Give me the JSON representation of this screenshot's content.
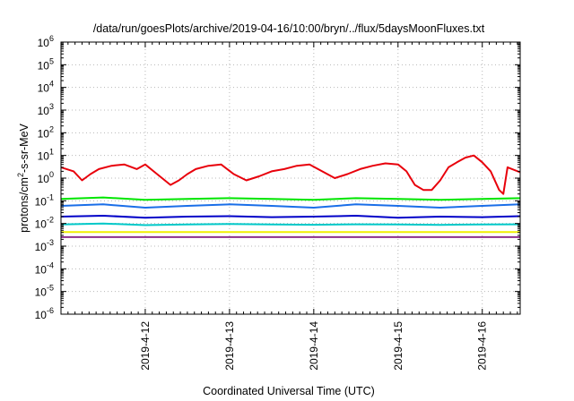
{
  "chart_data": {
    "type": "line",
    "title": "/data/run/goesPlots/archive/2019-04-16/10:00/bryn/../flux/5daysMoonFluxes.txt",
    "xlabel": "Coordinated Universal Time (UTC)",
    "ylabel": {
      "pre": "protons/cm",
      "sup": "2",
      "post": "-s-sr-MeV"
    },
    "yscale": "log",
    "ylim_exp": [
      -6,
      6
    ],
    "y_ticks": [
      {
        "base": "10",
        "exp": "-6"
      },
      {
        "base": "10",
        "exp": "-5"
      },
      {
        "base": "10",
        "exp": "-4"
      },
      {
        "base": "10",
        "exp": "-3"
      },
      {
        "base": "10",
        "exp": "-2"
      },
      {
        "base": "10",
        "exp": "-1"
      },
      {
        "base": "10",
        "exp": "0"
      },
      {
        "base": "10",
        "exp": "1"
      },
      {
        "base": "10",
        "exp": "2"
      },
      {
        "base": "10",
        "exp": "3"
      },
      {
        "base": "10",
        "exp": "4"
      },
      {
        "base": "10",
        "exp": "5"
      },
      {
        "base": "10",
        "exp": "6"
      }
    ],
    "x_unit": "days",
    "x_range_days": [
      0,
      5.45
    ],
    "x_ticks": [
      {
        "label": "2019-4-12",
        "day": 1.0
      },
      {
        "label": "2019-4-13",
        "day": 2.0
      },
      {
        "label": "2019-4-14",
        "day": 3.0
      },
      {
        "label": "2019-4-15",
        "day": 4.0
      },
      {
        "label": "2019-4-16",
        "day": 5.0
      }
    ],
    "grid": true,
    "legend": "none",
    "series": [
      {
        "color": "#e8000b",
        "x": [
          0,
          0.15,
          0.25,
          0.35,
          0.45,
          0.6,
          0.75,
          0.9,
          1.0,
          1.1,
          1.2,
          1.3,
          1.4,
          1.5,
          1.6,
          1.75,
          1.9,
          2.05,
          2.2,
          2.35,
          2.5,
          2.65,
          2.8,
          2.95,
          3.1,
          3.25,
          3.4,
          3.55,
          3.7,
          3.85,
          4.0,
          4.1,
          4.2,
          4.3,
          4.4,
          4.5,
          4.6,
          4.7,
          4.8,
          4.9,
          5.0,
          5.1,
          5.2,
          5.25,
          5.3,
          5.45
        ],
        "y": [
          3.0,
          2.0,
          0.8,
          1.5,
          2.5,
          3.5,
          4.0,
          2.5,
          4.0,
          2.0,
          1.0,
          0.5,
          0.8,
          1.5,
          2.5,
          3.5,
          4.0,
          1.5,
          0.8,
          1.2,
          2.0,
          2.5,
          3.5,
          4.0,
          2.0,
          1.0,
          1.5,
          2.5,
          3.5,
          4.5,
          4.0,
          2.0,
          0.5,
          0.3,
          0.3,
          0.8,
          3.0,
          5.0,
          8.0,
          10.0,
          5.0,
          2.0,
          0.3,
          0.2,
          3.0,
          1.8
        ]
      },
      {
        "color": "#00e600",
        "x": [
          0,
          0.5,
          1.0,
          1.5,
          2.0,
          2.5,
          3.0,
          3.5,
          4.0,
          4.5,
          5.0,
          5.45
        ],
        "y": [
          0.12,
          0.14,
          0.11,
          0.12,
          0.13,
          0.12,
          0.11,
          0.13,
          0.12,
          0.11,
          0.12,
          0.13
        ]
      },
      {
        "color": "#1a6ee8",
        "x": [
          0,
          0.5,
          1.0,
          1.5,
          2.0,
          2.5,
          3.0,
          3.5,
          4.0,
          4.5,
          5.0,
          5.45
        ],
        "y": [
          0.06,
          0.07,
          0.05,
          0.06,
          0.07,
          0.06,
          0.05,
          0.07,
          0.06,
          0.05,
          0.06,
          0.07
        ]
      },
      {
        "color": "#0000c8",
        "x": [
          0,
          0.5,
          1.0,
          1.5,
          2.0,
          2.5,
          3.0,
          3.5,
          4.0,
          4.5,
          5.0,
          5.45
        ],
        "y": [
          0.02,
          0.022,
          0.018,
          0.02,
          0.021,
          0.019,
          0.02,
          0.022,
          0.018,
          0.02,
          0.019,
          0.021
        ]
      },
      {
        "color": "#00c8c8",
        "x": [
          0,
          0.5,
          1.0,
          1.5,
          2.0,
          2.5,
          3.0,
          3.5,
          4.0,
          4.5,
          5.0,
          5.45
        ],
        "y": [
          0.009,
          0.01,
          0.0085,
          0.009,
          0.0095,
          0.009,
          0.0088,
          0.0092,
          0.009,
          0.0087,
          0.009,
          0.0092
        ]
      },
      {
        "color": "#f0f000",
        "x": [
          0,
          1.0,
          2.0,
          3.0,
          4.0,
          5.0,
          5.45
        ],
        "y": [
          0.0042,
          0.0042,
          0.0042,
          0.0042,
          0.0042,
          0.0042,
          0.0042
        ]
      },
      {
        "color": "#8b2f8b",
        "x": [
          0,
          0.5,
          1.0,
          1.5,
          2.0,
          2.5,
          3.0,
          3.5,
          4.0,
          4.5,
          5.0,
          5.45
        ],
        "y": [
          0.0025,
          0.0025,
          0.0025,
          0.0025,
          0.0025,
          0.0025,
          0.0025,
          0.0025,
          0.0025,
          0.0025,
          0.0025,
          0.0025
        ]
      }
    ]
  }
}
